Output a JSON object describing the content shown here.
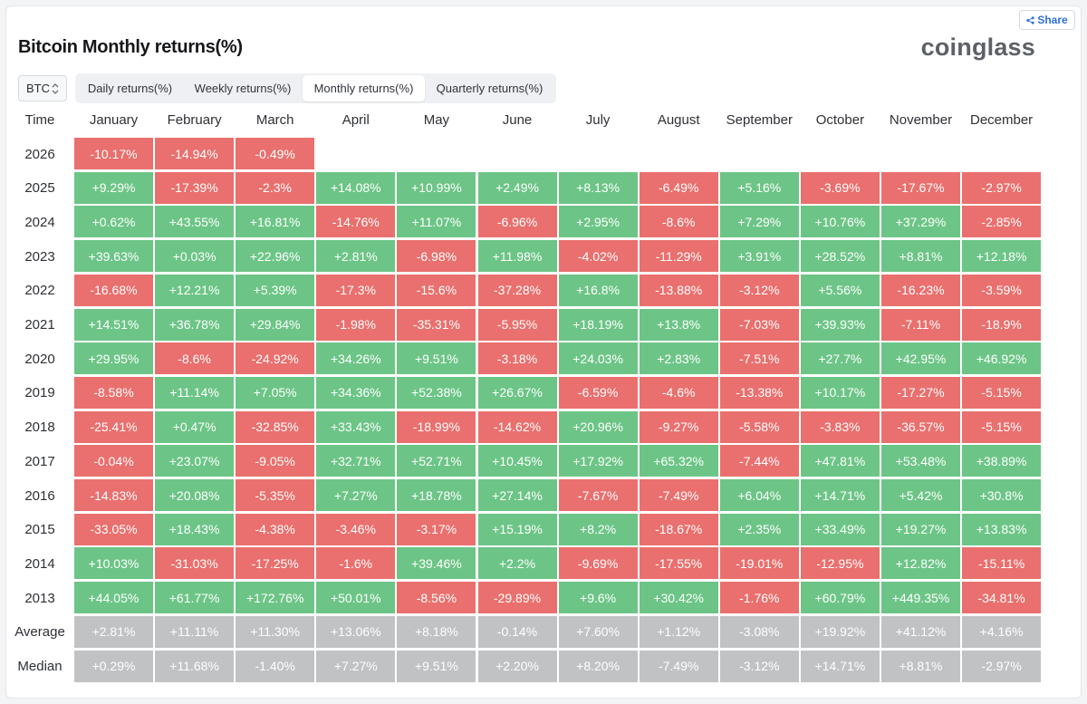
{
  "title": "Bitcoin Monthly returns(%)",
  "brand": "coinglass",
  "share_label": "Share",
  "coin_select": {
    "value": "BTC"
  },
  "tabs": [
    {
      "label": "Daily returns(%)",
      "active": false
    },
    {
      "label": "Weekly returns(%)",
      "active": false
    },
    {
      "label": "Monthly returns(%)",
      "active": true
    },
    {
      "label": "Quarterly returns(%)",
      "active": false
    }
  ],
  "colors": {
    "positive": "#6cc586",
    "negative": "#e9706e",
    "summary": "#c1c2c4",
    "link": "#2f6fd6"
  },
  "table": {
    "first_header": "Time",
    "months": [
      "January",
      "February",
      "March",
      "April",
      "May",
      "June",
      "July",
      "August",
      "September",
      "October",
      "November",
      "December"
    ],
    "rows": [
      {
        "year": "2026",
        "values": [
          "-10.17%",
          "-14.94%",
          "-0.49%",
          "",
          "",
          "",
          "",
          "",
          "",
          "",
          "",
          ""
        ]
      },
      {
        "year": "2025",
        "values": [
          "+9.29%",
          "-17.39%",
          "-2.3%",
          "+14.08%",
          "+10.99%",
          "+2.49%",
          "+8.13%",
          "-6.49%",
          "+5.16%",
          "-3.69%",
          "-17.67%",
          "-2.97%"
        ]
      },
      {
        "year": "2024",
        "values": [
          "+0.62%",
          "+43.55%",
          "+16.81%",
          "-14.76%",
          "+11.07%",
          "-6.96%",
          "+2.95%",
          "-8.6%",
          "+7.29%",
          "+10.76%",
          "+37.29%",
          "-2.85%"
        ]
      },
      {
        "year": "2023",
        "values": [
          "+39.63%",
          "+0.03%",
          "+22.96%",
          "+2.81%",
          "-6.98%",
          "+11.98%",
          "-4.02%",
          "-11.29%",
          "+3.91%",
          "+28.52%",
          "+8.81%",
          "+12.18%"
        ]
      },
      {
        "year": "2022",
        "values": [
          "-16.68%",
          "+12.21%",
          "+5.39%",
          "-17.3%",
          "-15.6%",
          "-37.28%",
          "+16.8%",
          "-13.88%",
          "-3.12%",
          "+5.56%",
          "-16.23%",
          "-3.59%"
        ]
      },
      {
        "year": "2021",
        "values": [
          "+14.51%",
          "+36.78%",
          "+29.84%",
          "-1.98%",
          "-35.31%",
          "-5.95%",
          "+18.19%",
          "+13.8%",
          "-7.03%",
          "+39.93%",
          "-7.11%",
          "-18.9%"
        ]
      },
      {
        "year": "2020",
        "values": [
          "+29.95%",
          "-8.6%",
          "-24.92%",
          "+34.26%",
          "+9.51%",
          "-3.18%",
          "+24.03%",
          "+2.83%",
          "-7.51%",
          "+27.7%",
          "+42.95%",
          "+46.92%"
        ]
      },
      {
        "year": "2019",
        "values": [
          "-8.58%",
          "+11.14%",
          "+7.05%",
          "+34.36%",
          "+52.38%",
          "+26.67%",
          "-6.59%",
          "-4.6%",
          "-13.38%",
          "+10.17%",
          "-17.27%",
          "-5.15%"
        ]
      },
      {
        "year": "2018",
        "values": [
          "-25.41%",
          "+0.47%",
          "-32.85%",
          "+33.43%",
          "-18.99%",
          "-14.62%",
          "+20.96%",
          "-9.27%",
          "-5.58%",
          "-3.83%",
          "-36.57%",
          "-5.15%"
        ]
      },
      {
        "year": "2017",
        "values": [
          "-0.04%",
          "+23.07%",
          "-9.05%",
          "+32.71%",
          "+52.71%",
          "+10.45%",
          "+17.92%",
          "+65.32%",
          "-7.44%",
          "+47.81%",
          "+53.48%",
          "+38.89%"
        ]
      },
      {
        "year": "2016",
        "values": [
          "-14.83%",
          "+20.08%",
          "-5.35%",
          "+7.27%",
          "+18.78%",
          "+27.14%",
          "-7.67%",
          "-7.49%",
          "+6.04%",
          "+14.71%",
          "+5.42%",
          "+30.8%"
        ]
      },
      {
        "year": "2015",
        "values": [
          "-33.05%",
          "+18.43%",
          "-4.38%",
          "-3.46%",
          "-3.17%",
          "+15.19%",
          "+8.2%",
          "-18.67%",
          "+2.35%",
          "+33.49%",
          "+19.27%",
          "+13.83%"
        ]
      },
      {
        "year": "2014",
        "values": [
          "+10.03%",
          "-31.03%",
          "-17.25%",
          "-1.6%",
          "+39.46%",
          "+2.2%",
          "-9.69%",
          "-17.55%",
          "-19.01%",
          "-12.95%",
          "+12.82%",
          "-15.11%"
        ]
      },
      {
        "year": "2013",
        "values": [
          "+44.05%",
          "+61.77%",
          "+172.76%",
          "+50.01%",
          "-8.56%",
          "-29.89%",
          "+9.6%",
          "+30.42%",
          "-1.76%",
          "+60.79%",
          "+449.35%",
          "-34.81%"
        ]
      }
    ],
    "summary_rows": [
      {
        "label": "Average",
        "values": [
          "+2.81%",
          "+11.11%",
          "+11.30%",
          "+13.06%",
          "+8.18%",
          "-0.14%",
          "+7.60%",
          "+1.12%",
          "-3.08%",
          "+19.92%",
          "+41.12%",
          "+4.16%"
        ]
      },
      {
        "label": "Median",
        "values": [
          "+0.29%",
          "+11.68%",
          "-1.40%",
          "+7.27%",
          "+9.51%",
          "+2.20%",
          "+8.20%",
          "-7.49%",
          "-3.12%",
          "+14.71%",
          "+8.81%",
          "-2.97%"
        ]
      }
    ]
  }
}
